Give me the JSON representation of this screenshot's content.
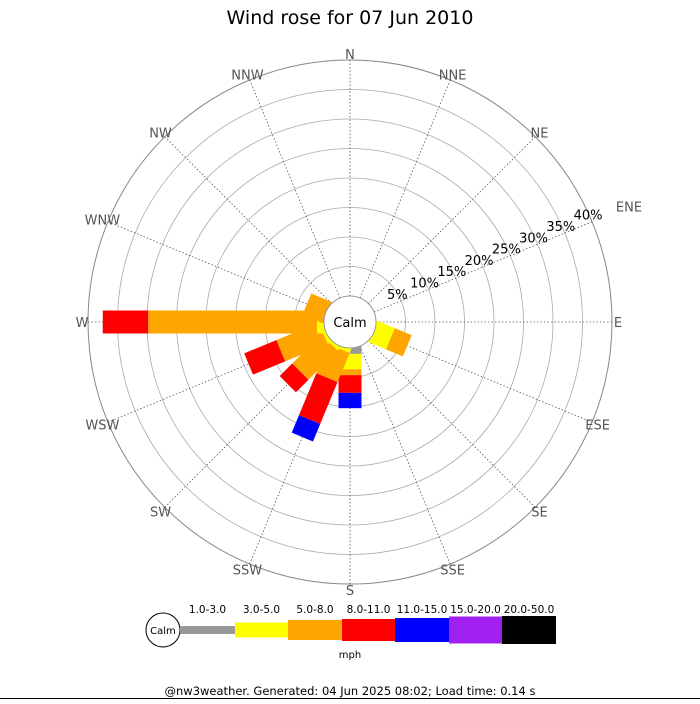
{
  "chart_data": {
    "type": "wind-rose",
    "title": "Wind rose for 07 Jun 2010",
    "directions": [
      "N",
      "NNE",
      "NE",
      "ENE",
      "E",
      "ESE",
      "SE",
      "SSE",
      "S",
      "SSW",
      "SW",
      "WSW",
      "W",
      "WNW",
      "NW",
      "NNW"
    ],
    "radial_ticks": [
      5,
      10,
      15,
      20,
      25,
      30,
      35,
      40
    ],
    "radial_tick_suffix": "%",
    "rmax": 40,
    "calm_label": "Calm",
    "units": "mph",
    "speed_bins": [
      {
        "label": "1.0-3.0",
        "color": "#999999"
      },
      {
        "label": "3.0-5.0",
        "color": "#ffff00"
      },
      {
        "label": "5.0-8.0",
        "color": "#ffa500"
      },
      {
        "label": "8.0-11.0",
        "color": "#ff0000"
      },
      {
        "label": "11.0-15.0",
        "color": "#0000ff"
      },
      {
        "label": "15.0-20.0",
        "color": "#a020f0"
      },
      {
        "label": "20.0-50.0",
        "color": "#000000"
      }
    ],
    "series_cumulative_percent": [
      {
        "direction": "ESE",
        "values": [
          0,
          3.0,
          6.1,
          6.1,
          6.1,
          6.1,
          6.1
        ]
      },
      {
        "direction": "S",
        "values": [
          1.0,
          3.6,
          4.6,
          7.6,
          10.2,
          10.2,
          10.2
        ]
      },
      {
        "direction": "SSW",
        "values": [
          0,
          0.5,
          5.8,
          13.5,
          16.7,
          16.7,
          16.7
        ]
      },
      {
        "direction": "SW",
        "values": [
          0,
          0.5,
          7.5,
          10.5,
          10.5,
          10.5,
          10.5
        ]
      },
      {
        "direction": "WSW",
        "values": [
          0,
          0.5,
          8.3,
          14.2,
          14.2,
          14.2,
          14.2
        ]
      },
      {
        "direction": "W",
        "values": [
          0,
          1.2,
          29.8,
          37.5,
          37.5,
          37.5,
          37.5
        ]
      },
      {
        "direction": "WNW",
        "values": [
          0,
          0,
          3.5,
          3.5,
          3.5,
          3.5,
          3.5
        ]
      }
    ]
  },
  "footer": "@nw3weather. Generated: 04 Jun 2025 08:02; Load time: 0.14 s"
}
